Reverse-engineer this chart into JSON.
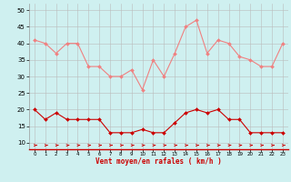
{
  "hours": [
    0,
    1,
    2,
    3,
    4,
    5,
    6,
    7,
    8,
    9,
    10,
    11,
    12,
    13,
    14,
    15,
    16,
    17,
    18,
    19,
    20,
    21,
    22,
    23
  ],
  "rafales": [
    41,
    40,
    37,
    40,
    40,
    33,
    33,
    30,
    30,
    32,
    26,
    35,
    30,
    37,
    45,
    47,
    37,
    41,
    40,
    36,
    35,
    33,
    33,
    40
  ],
  "vent_moyen": [
    20,
    17,
    19,
    17,
    17,
    17,
    17,
    13,
    13,
    13,
    14,
    13,
    13,
    16,
    19,
    20,
    19,
    20,
    17,
    17,
    13,
    13,
    13,
    13
  ],
  "rafales_color": "#f08080",
  "vent_moyen_color": "#cc0000",
  "bg_color": "#cff0f0",
  "grid_color": "#bbbbbb",
  "xlabel": "Vent moyen/en rafales ( km/h )",
  "xlabel_color": "#cc0000",
  "ylabel_ticks": [
    10,
    15,
    20,
    25,
    30,
    35,
    40,
    45,
    50
  ],
  "ylim": [
    8,
    52
  ],
  "xlim": [
    -0.5,
    23.5
  ]
}
